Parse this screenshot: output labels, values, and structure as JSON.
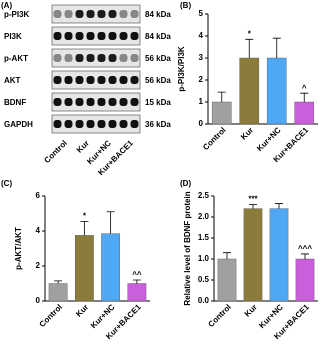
{
  "blot": {
    "panel_label": "(A)",
    "rows": [
      {
        "protein": "p-PI3K",
        "size": "84 kDa"
      },
      {
        "protein": "PI3K",
        "size": "84 kDa"
      },
      {
        "protein": "p-AKT",
        "size": "56 kDa"
      },
      {
        "protein": "AKT",
        "size": "56 kDa"
      },
      {
        "protein": "BDNF",
        "size": "15 kDa"
      },
      {
        "protein": "GAPDH",
        "size": "36 kDa"
      }
    ],
    "categories": [
      "Control",
      "Kur",
      "Kur+NC",
      "Kur+BACE1"
    ]
  },
  "chart_data": [
    {
      "type": "bar",
      "panel_label": "(B)",
      "y_label": "p-PI3K/PI3K",
      "categories": [
        "Control",
        "Kur",
        "Kur+NC",
        "Kur+BACE1"
      ],
      "values": [
        1.0,
        3.0,
        3.0,
        1.0
      ],
      "errors": [
        0.45,
        0.85,
        0.9,
        0.4
      ],
      "annotations": [
        null,
        "*",
        null,
        "^"
      ],
      "colors": [
        "#a0a0a0",
        "#8c7c3c",
        "#4fa8f5",
        "#c95fdb"
      ],
      "ylim": [
        0,
        5
      ],
      "yticks": [
        0,
        1,
        2,
        3,
        4,
        5
      ]
    },
    {
      "type": "bar",
      "panel_label": "(C)",
      "y_label": "p-AKT/AKT",
      "categories": [
        "Control",
        "Kur",
        "Kur+NC",
        "Kur+BACE1"
      ],
      "values": [
        1.0,
        3.75,
        3.85,
        1.0
      ],
      "errors": [
        0.15,
        0.8,
        1.25,
        0.2
      ],
      "annotations": [
        null,
        "*",
        null,
        "^^"
      ],
      "colors": [
        "#a0a0a0",
        "#8c7c3c",
        "#4fa8f5",
        "#c95fdb"
      ],
      "ylim": [
        0,
        6
      ],
      "yticks": [
        0,
        2,
        4,
        6
      ]
    },
    {
      "type": "bar",
      "panel_label": "(D)",
      "y_label": "Relative level of BDNF protein",
      "categories": [
        "Control",
        "Kur",
        "Kur+NC",
        "Kur+BACE1"
      ],
      "values": [
        1.0,
        2.2,
        2.2,
        1.0
      ],
      "errors": [
        0.15,
        0.1,
        0.12,
        0.12
      ],
      "annotations": [
        null,
        "***",
        null,
        "^^^"
      ],
      "colors": [
        "#a0a0a0",
        "#8c7c3c",
        "#4fa8f5",
        "#c95fdb"
      ],
      "ylim": [
        0,
        2.5
      ],
      "yticks": [
        {
          "value": 0,
          "label": "0.0"
        },
        0.5,
        {
          "value": 1,
          "label": "1.0"
        },
        1.5,
        {
          "value": 2,
          "label": "2.0"
        },
        2.5
      ]
    }
  ]
}
